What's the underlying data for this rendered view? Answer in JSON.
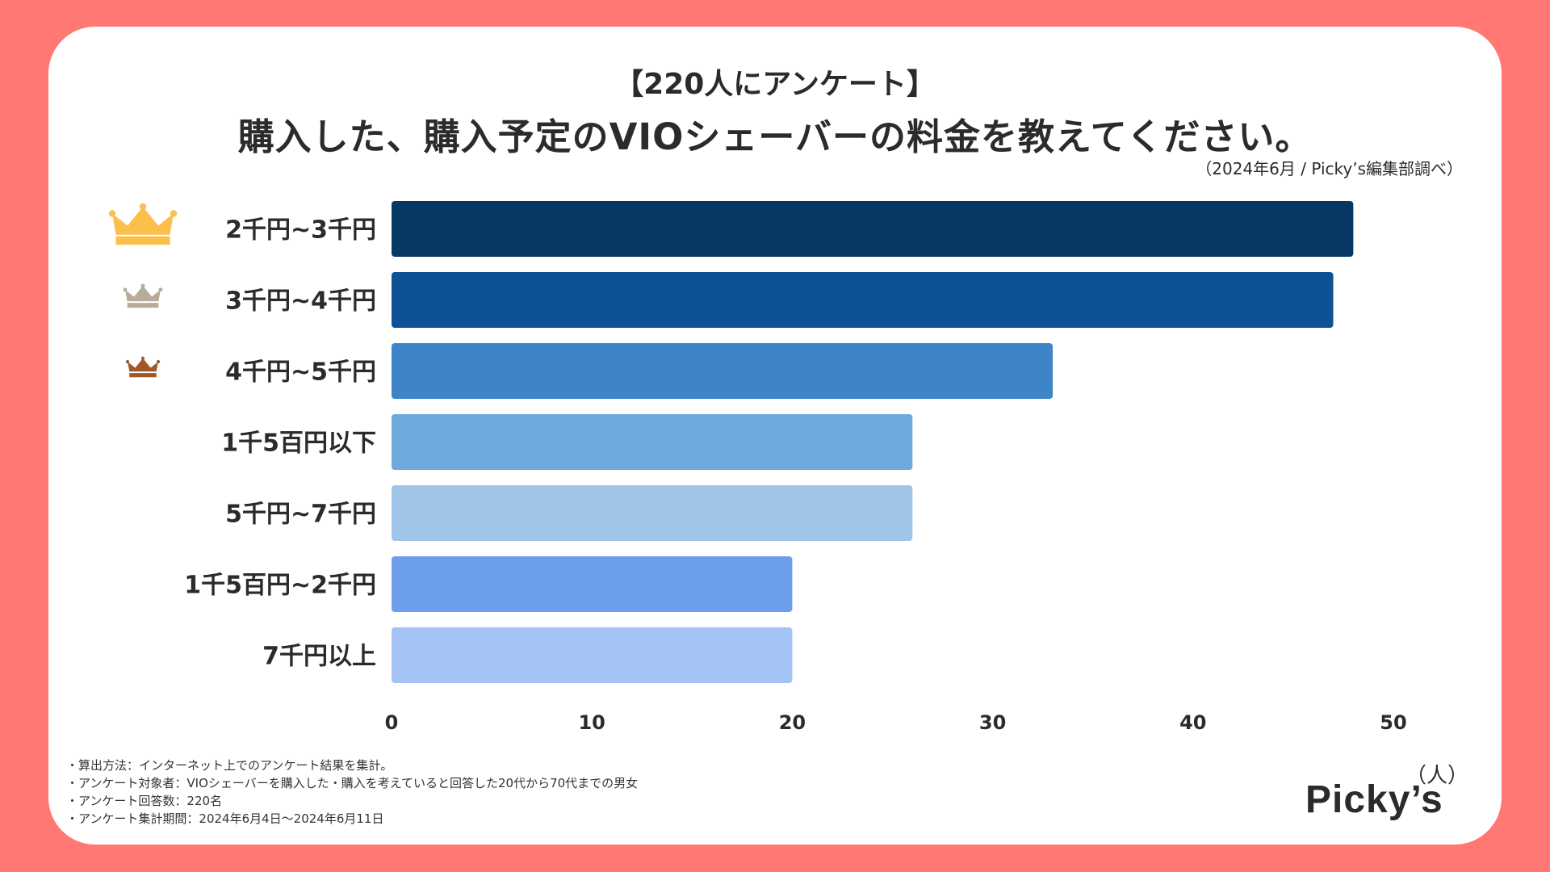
{
  "header": {
    "subtitle": "【220人にアンケート】",
    "title": "購入した、購入予定のVIOシェーバーの料金を教えてください。",
    "source": "（2024年6月 / Picky’s編集部調べ）"
  },
  "chart_data": {
    "type": "bar",
    "orientation": "horizontal",
    "categories": [
      "2千円~3千円",
      "3千円~4千円",
      "4千円~5千円",
      "1千5百円以下",
      "5千円~7千円",
      "1千5百円~2千円",
      "7千円以上"
    ],
    "values": [
      48,
      47,
      33,
      26,
      26,
      20,
      20
    ],
    "colors": [
      "#073763",
      "#0d5294",
      "#3d85c6",
      "#6fa8dc",
      "#9fc5e8",
      "#6d9eeb",
      "#a4c2f4"
    ],
    "xlim": [
      0,
      50
    ],
    "xticks": [
      "0",
      "10",
      "20",
      "30",
      "40",
      "50"
    ],
    "unit_label": "（人）",
    "rank_icons": [
      {
        "name": "gold-crown-icon",
        "color": "#fbbf4c"
      },
      {
        "name": "silver-crown-icon",
        "color": "#b9ab9a"
      },
      {
        "name": "bronze-crown-icon",
        "color": "#a0582a"
      }
    ]
  },
  "notes": [
    "・算出方法：インターネット上でのアンケート結果を集計。",
    "・アンケート対象者：VIOシェーバーを購入した・購入を考えていると回答した20代から70代までの男女",
    "・アンケート回答数：220名",
    "・アンケート集計期間：2024年6月4日〜2024年6月11日"
  ],
  "brand": {
    "logo": "Picky’s"
  }
}
